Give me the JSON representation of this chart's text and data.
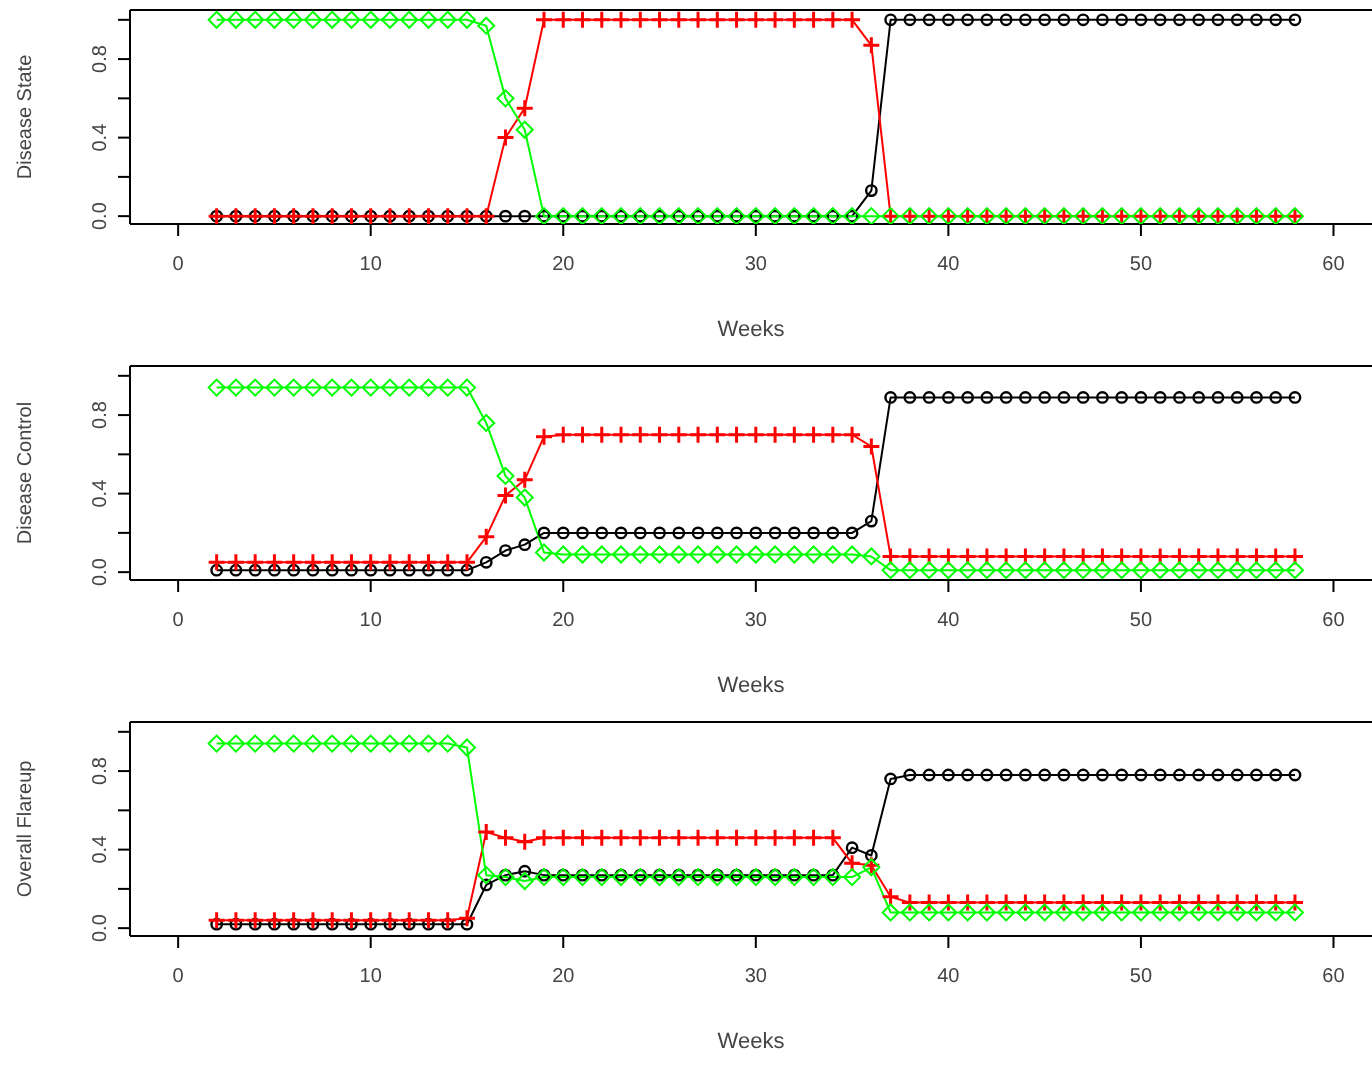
{
  "chart_data": [
    {
      "type": "line",
      "ylabel": "Disease State",
      "xlabel": "Weeks",
      "xlim": [
        -2.5,
        62
      ],
      "ylim": [
        -0.04,
        1.05
      ],
      "xticks": [
        0,
        10,
        20,
        30,
        40,
        50,
        60
      ],
      "yticks": [
        {
          "value": 0,
          "label": "0.0"
        },
        {
          "value": 0.2,
          "label": null
        },
        {
          "value": 0.4,
          "label": "0.4"
        },
        {
          "value": 0.6,
          "label": null
        },
        {
          "value": 0.8,
          "label": "0.8"
        },
        {
          "value": 1,
          "label": null
        }
      ],
      "grid": false,
      "legend": false,
      "x": [
        2,
        3,
        4,
        5,
        6,
        7,
        8,
        9,
        10,
        11,
        12,
        13,
        14,
        15,
        16,
        17,
        18,
        19,
        20,
        21,
        22,
        23,
        24,
        25,
        26,
        27,
        28,
        29,
        30,
        31,
        32,
        33,
        34,
        35,
        36,
        37,
        38,
        39,
        40,
        41,
        42,
        43,
        44,
        45,
        46,
        47,
        48,
        49,
        50,
        51,
        52,
        53,
        54,
        55,
        56,
        57,
        58
      ],
      "series": [
        {
          "color": "#000000",
          "marker": "circle",
          "values": [
            0,
            0,
            0,
            0,
            0,
            0,
            0,
            0,
            0,
            0,
            0,
            0,
            0,
            0,
            0,
            0,
            0,
            0,
            0,
            0,
            0,
            0,
            0,
            0,
            0,
            0,
            0,
            0,
            0,
            0,
            0,
            0,
            0,
            0,
            0.13,
            1,
            1,
            1,
            1,
            1,
            1,
            1,
            1,
            1,
            1,
            1,
            1,
            1,
            1,
            1,
            1,
            1,
            1,
            1,
            1,
            1,
            1
          ]
        },
        {
          "color": "#ff0000",
          "marker": "cross",
          "values": [
            0,
            0,
            0,
            0,
            0,
            0,
            0,
            0,
            0,
            0,
            0,
            0,
            0,
            0,
            0,
            0.4,
            0.55,
            1,
            1,
            1,
            1,
            1,
            1,
            1,
            1,
            1,
            1,
            1,
            1,
            1,
            1,
            1,
            1,
            1,
            0.87,
            0,
            0,
            0,
            0,
            0,
            0,
            0,
            0,
            0,
            0,
            0,
            0,
            0,
            0,
            0,
            0,
            0,
            0,
            0,
            0,
            0,
            0
          ]
        },
        {
          "color": "#00ff00",
          "marker": "diamond",
          "values": [
            1,
            1,
            1,
            1,
            1,
            1,
            1,
            1,
            1,
            1,
            1,
            1,
            1,
            1,
            0.97,
            0.6,
            0.44,
            0,
            0,
            0,
            0,
            0,
            0,
            0,
            0,
            0,
            0,
            0,
            0,
            0,
            0,
            0,
            0,
            0,
            0,
            0,
            0,
            0,
            0,
            0,
            0,
            0,
            0,
            0,
            0,
            0,
            0,
            0,
            0,
            0,
            0,
            0,
            0,
            0,
            0,
            0,
            0
          ]
        }
      ]
    },
    {
      "type": "line",
      "ylabel": "Disease Control",
      "xlabel": "Weeks",
      "xlim": [
        -2.5,
        62
      ],
      "ylim": [
        -0.04,
        1.05
      ],
      "xticks": [
        0,
        10,
        20,
        30,
        40,
        50,
        60
      ],
      "yticks": [
        {
          "value": 0,
          "label": "0.0"
        },
        {
          "value": 0.2,
          "label": null
        },
        {
          "value": 0.4,
          "label": "0.4"
        },
        {
          "value": 0.6,
          "label": null
        },
        {
          "value": 0.8,
          "label": "0.8"
        },
        {
          "value": 1,
          "label": null
        }
      ],
      "grid": false,
      "legend": false,
      "x": [
        2,
        3,
        4,
        5,
        6,
        7,
        8,
        9,
        10,
        11,
        12,
        13,
        14,
        15,
        16,
        17,
        18,
        19,
        20,
        21,
        22,
        23,
        24,
        25,
        26,
        27,
        28,
        29,
        30,
        31,
        32,
        33,
        34,
        35,
        36,
        37,
        38,
        39,
        40,
        41,
        42,
        43,
        44,
        45,
        46,
        47,
        48,
        49,
        50,
        51,
        52,
        53,
        54,
        55,
        56,
        57,
        58
      ],
      "series": [
        {
          "color": "#000000",
          "marker": "circle",
          "values": [
            0.01,
            0.01,
            0.01,
            0.01,
            0.01,
            0.01,
            0.01,
            0.01,
            0.01,
            0.01,
            0.01,
            0.01,
            0.01,
            0.01,
            0.05,
            0.11,
            0.14,
            0.2,
            0.2,
            0.2,
            0.2,
            0.2,
            0.2,
            0.2,
            0.2,
            0.2,
            0.2,
            0.2,
            0.2,
            0.2,
            0.2,
            0.2,
            0.2,
            0.2,
            0.26,
            0.89,
            0.89,
            0.89,
            0.89,
            0.89,
            0.89,
            0.89,
            0.89,
            0.89,
            0.89,
            0.89,
            0.89,
            0.89,
            0.89,
            0.89,
            0.89,
            0.89,
            0.89,
            0.89,
            0.89,
            0.89,
            0.89
          ]
        },
        {
          "color": "#ff0000",
          "marker": "cross",
          "values": [
            0.05,
            0.05,
            0.05,
            0.05,
            0.05,
            0.05,
            0.05,
            0.05,
            0.05,
            0.05,
            0.05,
            0.05,
            0.05,
            0.05,
            0.18,
            0.39,
            0.47,
            0.69,
            0.7,
            0.7,
            0.7,
            0.7,
            0.7,
            0.7,
            0.7,
            0.7,
            0.7,
            0.7,
            0.7,
            0.7,
            0.7,
            0.7,
            0.7,
            0.7,
            0.64,
            0.08,
            0.08,
            0.08,
            0.08,
            0.08,
            0.08,
            0.08,
            0.08,
            0.08,
            0.08,
            0.08,
            0.08,
            0.08,
            0.08,
            0.08,
            0.08,
            0.08,
            0.08,
            0.08,
            0.08,
            0.08,
            0.08
          ]
        },
        {
          "color": "#00ff00",
          "marker": "diamond",
          "values": [
            0.94,
            0.94,
            0.94,
            0.94,
            0.94,
            0.94,
            0.94,
            0.94,
            0.94,
            0.94,
            0.94,
            0.94,
            0.94,
            0.94,
            0.76,
            0.49,
            0.38,
            0.1,
            0.09,
            0.09,
            0.09,
            0.09,
            0.09,
            0.09,
            0.09,
            0.09,
            0.09,
            0.09,
            0.09,
            0.09,
            0.09,
            0.09,
            0.09,
            0.09,
            0.08,
            0.01,
            0.01,
            0.01,
            0.01,
            0.01,
            0.01,
            0.01,
            0.01,
            0.01,
            0.01,
            0.01,
            0.01,
            0.01,
            0.01,
            0.01,
            0.01,
            0.01,
            0.01,
            0.01,
            0.01,
            0.01,
            0.01
          ]
        }
      ]
    },
    {
      "type": "line",
      "ylabel": "Overall Flareup",
      "xlabel": "Weeks",
      "xlim": [
        -2.5,
        62
      ],
      "ylim": [
        -0.04,
        1.05
      ],
      "xticks": [
        0,
        10,
        20,
        30,
        40,
        50,
        60
      ],
      "yticks": [
        {
          "value": 0,
          "label": "0.0"
        },
        {
          "value": 0.2,
          "label": null
        },
        {
          "value": 0.4,
          "label": "0.4"
        },
        {
          "value": 0.6,
          "label": null
        },
        {
          "value": 0.8,
          "label": "0.8"
        },
        {
          "value": 1,
          "label": null
        }
      ],
      "grid": false,
      "legend": false,
      "x": [
        2,
        3,
        4,
        5,
        6,
        7,
        8,
        9,
        10,
        11,
        12,
        13,
        14,
        15,
        16,
        17,
        18,
        19,
        20,
        21,
        22,
        23,
        24,
        25,
        26,
        27,
        28,
        29,
        30,
        31,
        32,
        33,
        34,
        35,
        36,
        37,
        38,
        39,
        40,
        41,
        42,
        43,
        44,
        45,
        46,
        47,
        48,
        49,
        50,
        51,
        52,
        53,
        54,
        55,
        56,
        57,
        58
      ],
      "series": [
        {
          "color": "#000000",
          "marker": "circle",
          "values": [
            0.02,
            0.02,
            0.02,
            0.02,
            0.02,
            0.02,
            0.02,
            0.02,
            0.02,
            0.02,
            0.02,
            0.02,
            0.02,
            0.02,
            0.22,
            0.27,
            0.29,
            0.27,
            0.27,
            0.27,
            0.27,
            0.27,
            0.27,
            0.27,
            0.27,
            0.27,
            0.27,
            0.27,
            0.27,
            0.27,
            0.27,
            0.27,
            0.27,
            0.41,
            0.37,
            0.76,
            0.78,
            0.78,
            0.78,
            0.78,
            0.78,
            0.78,
            0.78,
            0.78,
            0.78,
            0.78,
            0.78,
            0.78,
            0.78,
            0.78,
            0.78,
            0.78,
            0.78,
            0.78,
            0.78,
            0.78,
            0.78
          ]
        },
        {
          "color": "#ff0000",
          "marker": "cross",
          "values": [
            0.04,
            0.04,
            0.04,
            0.04,
            0.04,
            0.04,
            0.04,
            0.04,
            0.04,
            0.04,
            0.04,
            0.04,
            0.04,
            0.05,
            0.49,
            0.46,
            0.44,
            0.46,
            0.46,
            0.46,
            0.46,
            0.46,
            0.46,
            0.46,
            0.46,
            0.46,
            0.46,
            0.46,
            0.46,
            0.46,
            0.46,
            0.46,
            0.46,
            0.33,
            0.32,
            0.16,
            0.13,
            0.13,
            0.13,
            0.13,
            0.13,
            0.13,
            0.13,
            0.13,
            0.13,
            0.13,
            0.13,
            0.13,
            0.13,
            0.13,
            0.13,
            0.13,
            0.13,
            0.13,
            0.13,
            0.13,
            0.13
          ]
        },
        {
          "color": "#00ff00",
          "marker": "diamond",
          "values": [
            0.94,
            0.94,
            0.94,
            0.94,
            0.94,
            0.94,
            0.94,
            0.94,
            0.94,
            0.94,
            0.94,
            0.94,
            0.94,
            0.92,
            0.27,
            0.26,
            0.24,
            0.26,
            0.26,
            0.26,
            0.26,
            0.26,
            0.26,
            0.26,
            0.26,
            0.26,
            0.26,
            0.26,
            0.26,
            0.26,
            0.26,
            0.26,
            0.26,
            0.26,
            0.31,
            0.08,
            0.08,
            0.08,
            0.08,
            0.08,
            0.08,
            0.08,
            0.08,
            0.08,
            0.08,
            0.08,
            0.08,
            0.08,
            0.08,
            0.08,
            0.08,
            0.08,
            0.08,
            0.08,
            0.08,
            0.08,
            0.08
          ]
        }
      ]
    }
  ]
}
